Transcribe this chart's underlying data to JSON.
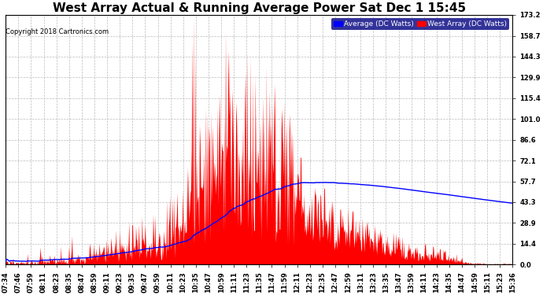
{
  "title": "West Array Actual & Running Average Power Sat Dec 1 15:45",
  "copyright": "Copyright 2018 Cartronics.com",
  "legend_labels": [
    "Average (DC Watts)",
    "West Array (DC Watts)"
  ],
  "legend_colors": [
    "#0000ff",
    "#ff0000"
  ],
  "legend_bg": "#000080",
  "yticks": [
    0.0,
    14.4,
    28.9,
    43.3,
    57.7,
    72.1,
    86.6,
    101.0,
    115.4,
    129.9,
    144.3,
    158.7,
    173.2
  ],
  "ylim": [
    0.0,
    173.2
  ],
  "xtick_labels": [
    "07:34",
    "07:46",
    "07:59",
    "08:11",
    "08:23",
    "08:35",
    "08:47",
    "08:59",
    "09:11",
    "09:23",
    "09:35",
    "09:47",
    "09:59",
    "10:11",
    "10:23",
    "10:35",
    "10:47",
    "10:59",
    "11:11",
    "11:23",
    "11:35",
    "11:47",
    "11:59",
    "12:11",
    "12:23",
    "12:35",
    "12:47",
    "12:59",
    "13:11",
    "13:23",
    "13:35",
    "13:47",
    "13:59",
    "14:11",
    "14:23",
    "14:35",
    "14:47",
    "14:59",
    "15:11",
    "15:23",
    "15:36"
  ],
  "bg_color": "#ffffff",
  "grid_color": "#bbbbbb",
  "bar_color": "#ff0000",
  "line_color": "#0000ff",
  "title_fontsize": 11,
  "tick_fontsize": 6,
  "ylabel_right_fontsize": 7
}
